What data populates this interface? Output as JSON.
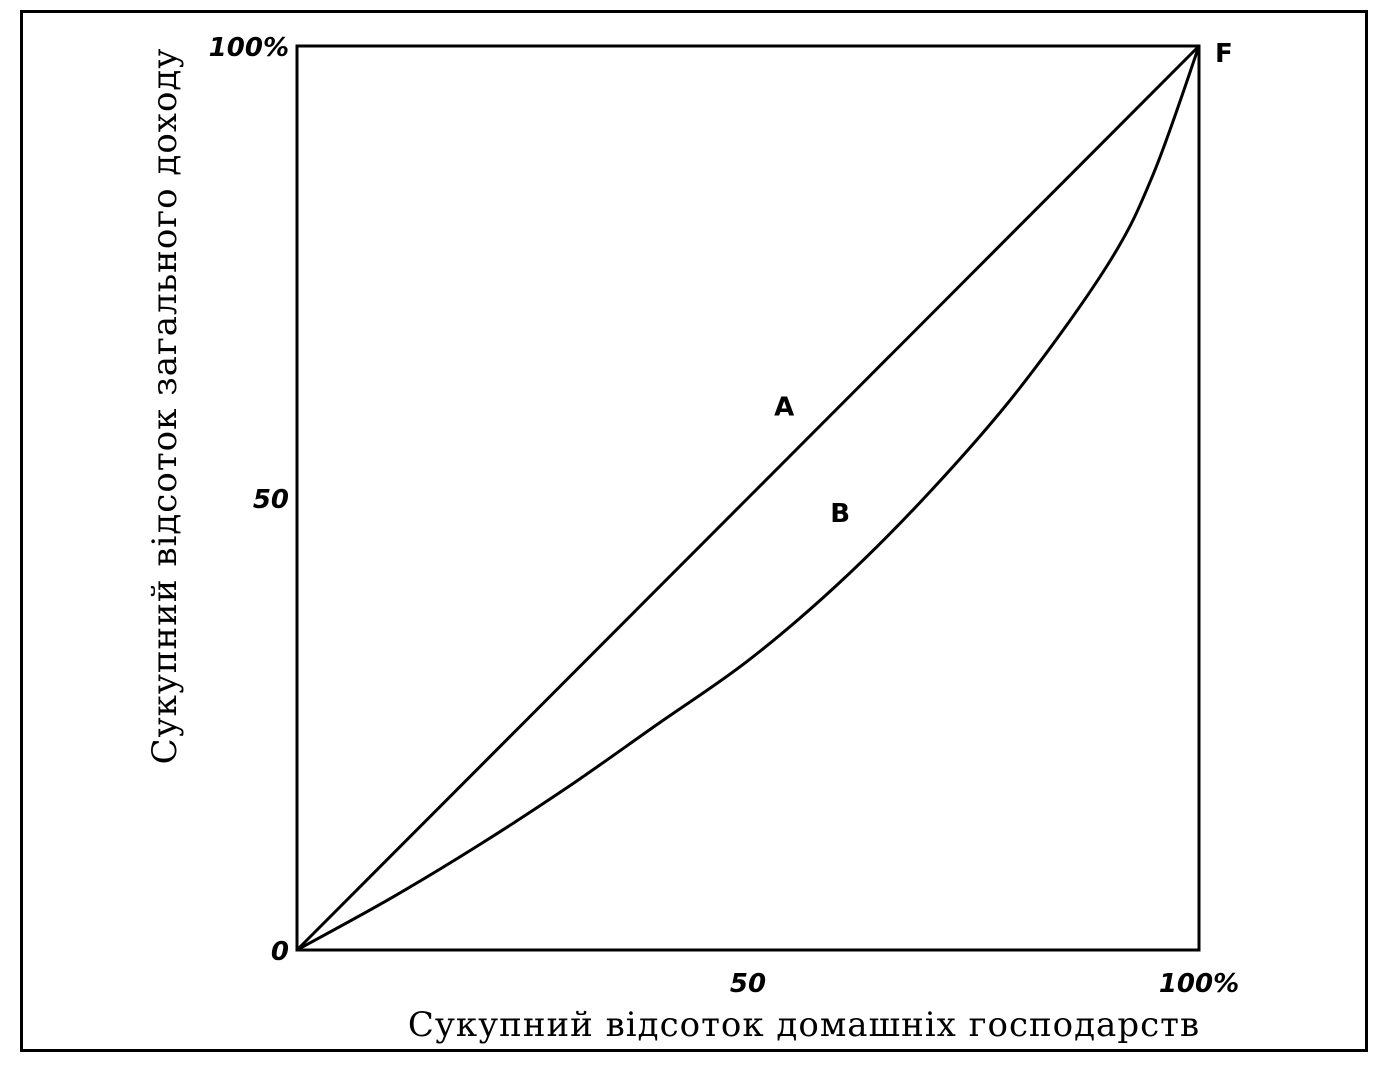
{
  "chart_data": {
    "type": "line",
    "xlabel": "Сукупний відсоток домашніх господарств",
    "ylabel": "Сукупний відсоток загального доходу",
    "xlim": [
      0,
      100
    ],
    "ylim": [
      0,
      100
    ],
    "x_ticks": [
      "0",
      "50",
      "100%"
    ],
    "y_ticks": [
      "0",
      "50",
      "100%"
    ],
    "corner_label": "F",
    "grid": false,
    "series": [
      {
        "name": "A",
        "x": [
          0,
          25,
          50,
          75,
          100
        ],
        "y": [
          0,
          25,
          50,
          75,
          100
        ]
      },
      {
        "name": "B",
        "x": [
          0,
          10,
          20,
          30,
          40,
          50,
          60,
          70,
          80,
          90,
          95,
          100
        ],
        "y": [
          0,
          5.5,
          11.5,
          18,
          25,
          32,
          40.5,
          50.5,
          62,
          76,
          86,
          100
        ]
      }
    ]
  }
}
